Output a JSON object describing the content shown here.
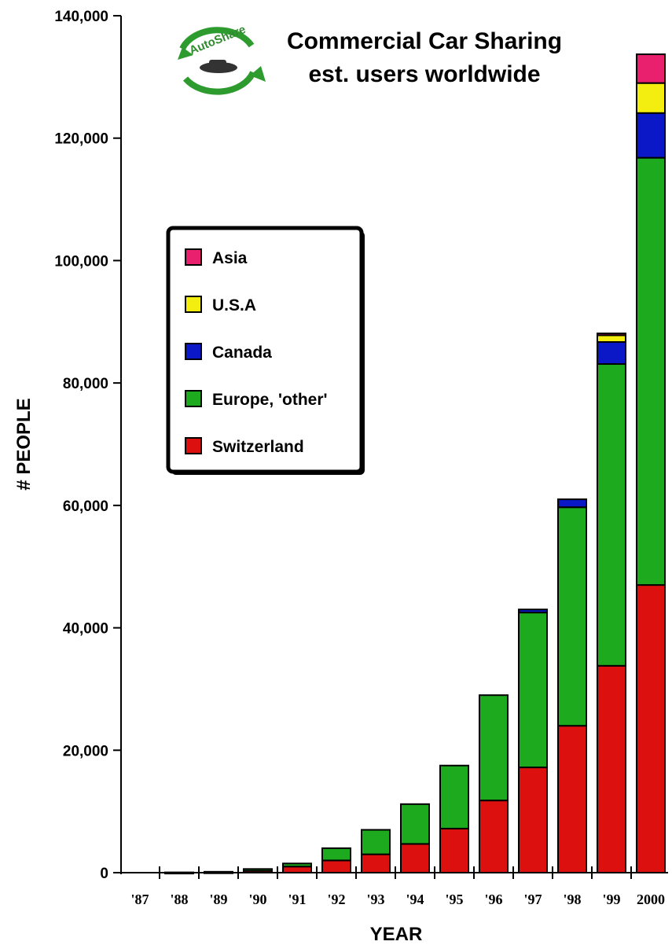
{
  "logo": {
    "text": "AutoShare"
  },
  "chart_data": {
    "type": "bar",
    "stacked": true,
    "title": "Commercial Car Sharing",
    "subtitle": "est. users worldwide",
    "xlabel": "YEAR",
    "ylabel": "# PEOPLE",
    "ylim": [
      0,
      140000
    ],
    "yticks": [
      0,
      20000,
      40000,
      60000,
      80000,
      100000,
      120000,
      140000
    ],
    "ytick_labels": [
      "0",
      "20,000",
      "40,000",
      "60,000",
      "80,000",
      "100,000",
      "120,000",
      "140,000"
    ],
    "categories": [
      "'87",
      "'88",
      "'89",
      "'90",
      "'91",
      "'92",
      "'93",
      "'94",
      "'95",
      "'96",
      "'97",
      "'98",
      "'99",
      "2000"
    ],
    "legend_position": "upper-left",
    "series": [
      {
        "name": "Switzerland",
        "color": "#dd1010",
        "values": [
          0,
          0,
          100,
          300,
          1000,
          2000,
          3000,
          4700,
          7200,
          11800,
          17200,
          24000,
          33800,
          47000
        ]
      },
      {
        "name": "Europe, 'other'",
        "color": "#1eaa1e",
        "values": [
          0,
          50,
          50,
          300,
          500,
          2000,
          4000,
          6500,
          10300,
          17200,
          25300,
          35700,
          49300,
          69800
        ]
      },
      {
        "name": "Canada",
        "color": "#0a18c8",
        "values": [
          0,
          0,
          0,
          0,
          0,
          0,
          0,
          0,
          0,
          0,
          500,
          1300,
          3600,
          7300
        ]
      },
      {
        "name": "U.S.A",
        "color": "#f4ee10",
        "values": [
          0,
          0,
          0,
          0,
          0,
          0,
          0,
          0,
          0,
          0,
          0,
          0,
          1100,
          4900
        ]
      },
      {
        "name": "Asia",
        "color": "#e8206e",
        "values": [
          0,
          0,
          0,
          0,
          0,
          0,
          0,
          0,
          0,
          0,
          0,
          0,
          300,
          4700
        ]
      }
    ],
    "legend_order": [
      "Asia",
      "U.S.A",
      "Canada",
      "Europe, 'other'",
      "Switzerland"
    ]
  }
}
